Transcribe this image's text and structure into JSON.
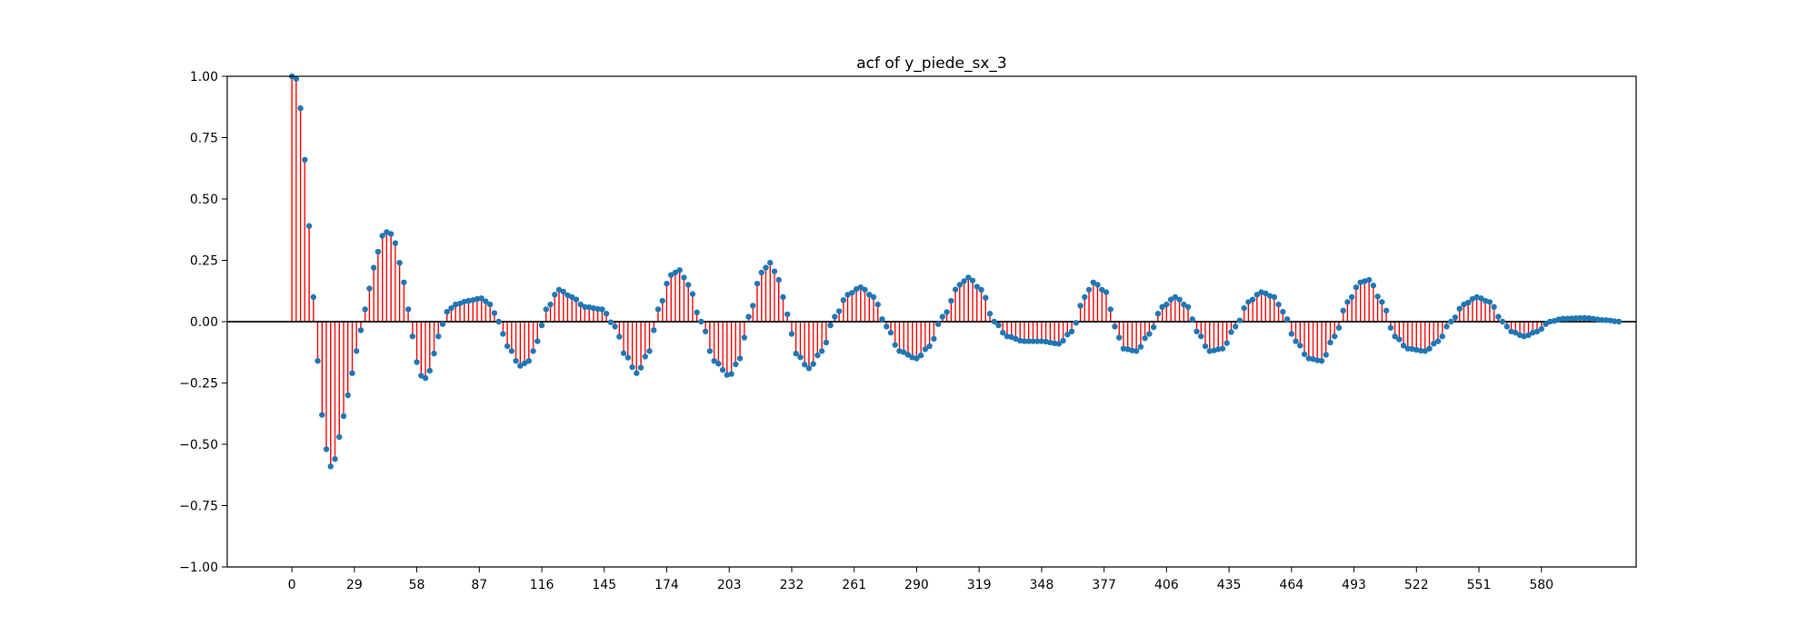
{
  "chart_data": {
    "type": "stem",
    "title": "acf of y_piede_sx_3",
    "xlabel": "",
    "ylabel": "",
    "xlim": [
      -30,
      624
    ],
    "ylim": [
      -1.0,
      1.0
    ],
    "x_ticks": [
      0,
      29,
      58,
      87,
      116,
      145,
      174,
      203,
      232,
      261,
      290,
      319,
      348,
      377,
      406,
      435,
      464,
      493,
      522,
      551,
      580
    ],
    "y_ticks": [
      1.0,
      0.75,
      0.5,
      0.25,
      0.0,
      -0.25,
      -0.5,
      -0.75,
      -1.0
    ],
    "y_tick_labels": [
      "1.00",
      "0.75",
      "0.50",
      "0.25",
      "0.00",
      "−0.25",
      "−0.50",
      "−0.75",
      "−1.00"
    ],
    "stem_color": "#ff0000",
    "marker_color": "#1f77b4",
    "baseline_color": "#000000",
    "lag_step": 2,
    "keypoints": [
      [
        0,
        1.0
      ],
      [
        2,
        0.99
      ],
      [
        4,
        0.87
      ],
      [
        6,
        0.66
      ],
      [
        8,
        0.39
      ],
      [
        9,
        0.24
      ],
      [
        10,
        0.1
      ],
      [
        11,
        -0.04
      ],
      [
        12,
        -0.16
      ],
      [
        14,
        -0.38
      ],
      [
        16,
        -0.52
      ],
      [
        18,
        -0.59
      ],
      [
        20,
        -0.56
      ],
      [
        22,
        -0.47
      ],
      [
        26,
        -0.3
      ],
      [
        30,
        -0.12
      ],
      [
        34,
        0.05
      ],
      [
        38,
        0.22
      ],
      [
        42,
        0.35
      ],
      [
        45,
        0.37
      ],
      [
        48,
        0.32
      ],
      [
        52,
        0.16
      ],
      [
        56,
        -0.06
      ],
      [
        59,
        -0.2
      ],
      [
        61,
        -0.24
      ],
      [
        64,
        -0.2
      ],
      [
        68,
        -0.06
      ],
      [
        72,
        0.04
      ],
      [
        76,
        0.07
      ],
      [
        82,
        0.085
      ],
      [
        88,
        0.095
      ],
      [
        92,
        0.07
      ],
      [
        96,
        0.0
      ],
      [
        100,
        -0.1
      ],
      [
        106,
        -0.18
      ],
      [
        110,
        -0.16
      ],
      [
        114,
        -0.08
      ],
      [
        118,
        0.05
      ],
      [
        124,
        0.13
      ],
      [
        130,
        0.1
      ],
      [
        136,
        0.06
      ],
      [
        144,
        0.05
      ],
      [
        150,
        -0.02
      ],
      [
        155,
        -0.14
      ],
      [
        160,
        -0.21
      ],
      [
        166,
        -0.12
      ],
      [
        170,
        0.05
      ],
      [
        176,
        0.19
      ],
      [
        180,
        0.21
      ],
      [
        184,
        0.15
      ],
      [
        190,
        0.0
      ],
      [
        196,
        -0.16
      ],
      [
        203,
        -0.22
      ],
      [
        208,
        -0.15
      ],
      [
        212,
        0.02
      ],
      [
        218,
        0.2
      ],
      [
        222,
        0.24
      ],
      [
        226,
        0.17
      ],
      [
        230,
        0.03
      ],
      [
        234,
        -0.13
      ],
      [
        240,
        -0.19
      ],
      [
        246,
        -0.12
      ],
      [
        252,
        0.02
      ],
      [
        258,
        0.11
      ],
      [
        264,
        0.14
      ],
      [
        270,
        0.1
      ],
      [
        276,
        -0.02
      ],
      [
        282,
        -0.12
      ],
      [
        290,
        -0.15
      ],
      [
        296,
        -0.1
      ],
      [
        302,
        0.02
      ],
      [
        310,
        0.15
      ],
      [
        314,
        0.18
      ],
      [
        320,
        0.13
      ],
      [
        326,
        0.0
      ],
      [
        332,
        -0.06
      ],
      [
        340,
        -0.08
      ],
      [
        348,
        -0.08
      ],
      [
        356,
        -0.09
      ],
      [
        362,
        -0.04
      ],
      [
        368,
        0.1
      ],
      [
        372,
        0.16
      ],
      [
        378,
        0.12
      ],
      [
        382,
        -0.02
      ],
      [
        386,
        -0.11
      ],
      [
        392,
        -0.12
      ],
      [
        398,
        -0.05
      ],
      [
        404,
        0.06
      ],
      [
        410,
        0.1
      ],
      [
        416,
        0.06
      ],
      [
        420,
        -0.04
      ],
      [
        426,
        -0.12
      ],
      [
        432,
        -0.11
      ],
      [
        438,
        -0.02
      ],
      [
        444,
        0.08
      ],
      [
        450,
        0.12
      ],
      [
        456,
        0.1
      ],
      [
        460,
        0.04
      ],
      [
        466,
        -0.08
      ],
      [
        472,
        -0.15
      ],
      [
        478,
        -0.16
      ],
      [
        484,
        -0.06
      ],
      [
        490,
        0.08
      ],
      [
        496,
        0.16
      ],
      [
        500,
        0.17
      ],
      [
        506,
        0.08
      ],
      [
        512,
        -0.06
      ],
      [
        518,
        -0.11
      ],
      [
        526,
        -0.12
      ],
      [
        532,
        -0.08
      ],
      [
        538,
        0.0
      ],
      [
        544,
        0.07
      ],
      [
        550,
        0.1
      ],
      [
        556,
        0.08
      ],
      [
        562,
        0.0
      ],
      [
        566,
        -0.04
      ],
      [
        572,
        -0.06
      ],
      [
        578,
        -0.04
      ],
      [
        584,
        0.0
      ],
      [
        590,
        0.012
      ],
      [
        600,
        0.015
      ],
      [
        610,
        0.006
      ],
      [
        616,
        0.0
      ]
    ]
  }
}
